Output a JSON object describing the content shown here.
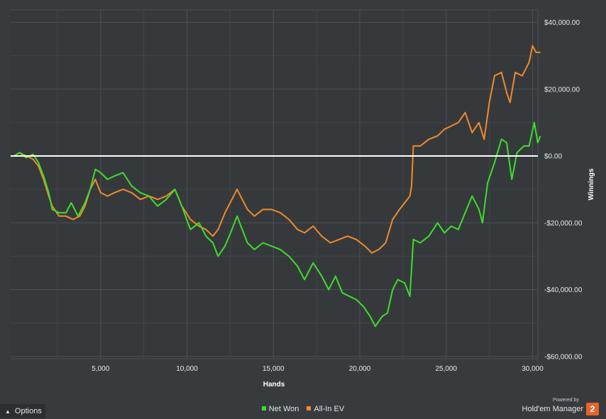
{
  "chart_data": {
    "type": "line",
    "xlabel": "Hands",
    "ylabel": "Winnings",
    "xlim": [
      0,
      30500
    ],
    "ylim": [
      -60000,
      40000
    ],
    "x_ticks": [
      5000,
      10000,
      15000,
      20000,
      25000,
      30000
    ],
    "x_tick_labels": [
      "5,000",
      "10,000",
      "15,000",
      "20,000",
      "25,000",
      "30,000"
    ],
    "y_ticks": [
      40000,
      20000,
      0,
      -20000,
      -40000,
      -60000
    ],
    "y_tick_labels": [
      "$40,000.00",
      "$20,000.00",
      "$0.00",
      "-$20,000.00",
      "-$40,000.00",
      "-$60,000.00"
    ],
    "grid": true,
    "legend_position": "bottom-center",
    "zero_line_color": "#ffffff",
    "series": [
      {
        "name": "Net Won",
        "color": "#3bde2a",
        "points": [
          [
            0,
            0
          ],
          [
            300,
            1000
          ],
          [
            700,
            -500
          ],
          [
            1100,
            500
          ],
          [
            1400,
            -2000
          ],
          [
            1700,
            -6000
          ],
          [
            2000,
            -11000
          ],
          [
            2200,
            -16000
          ],
          [
            2600,
            -17000
          ],
          [
            3000,
            -17000
          ],
          [
            3300,
            -14000
          ],
          [
            3700,
            -18000
          ],
          [
            4100,
            -14000
          ],
          [
            4400,
            -10000
          ],
          [
            4700,
            -4000
          ],
          [
            5000,
            -5000
          ],
          [
            5400,
            -7000
          ],
          [
            5800,
            -6000
          ],
          [
            6300,
            -5000
          ],
          [
            6800,
            -9000
          ],
          [
            7300,
            -11000
          ],
          [
            7800,
            -12000
          ],
          [
            8300,
            -15000
          ],
          [
            8800,
            -13000
          ],
          [
            9300,
            -10000
          ],
          [
            9700,
            -15000
          ],
          [
            10200,
            -22000
          ],
          [
            10700,
            -20000
          ],
          [
            11100,
            -24000
          ],
          [
            11500,
            -26000
          ],
          [
            11800,
            -30000
          ],
          [
            12200,
            -27000
          ],
          [
            12600,
            -22000
          ],
          [
            12900,
            -18000
          ],
          [
            13200,
            -22000
          ],
          [
            13500,
            -26000
          ],
          [
            13900,
            -28000
          ],
          [
            14400,
            -26000
          ],
          [
            14900,
            -27000
          ],
          [
            15400,
            -28000
          ],
          [
            15900,
            -30000
          ],
          [
            16400,
            -33000
          ],
          [
            16800,
            -37000
          ],
          [
            17300,
            -32000
          ],
          [
            17800,
            -36000
          ],
          [
            18200,
            -40000
          ],
          [
            18600,
            -36000
          ],
          [
            19000,
            -41000
          ],
          [
            19400,
            -42000
          ],
          [
            19800,
            -43000
          ],
          [
            20200,
            -45000
          ],
          [
            20600,
            -48000
          ],
          [
            20900,
            -51000
          ],
          [
            21300,
            -48000
          ],
          [
            21600,
            -47000
          ],
          [
            21900,
            -40000
          ],
          [
            22200,
            -37000
          ],
          [
            22600,
            -38000
          ],
          [
            22900,
            -42000
          ],
          [
            23100,
            -25000
          ],
          [
            23500,
            -26000
          ],
          [
            24000,
            -24000
          ],
          [
            24500,
            -20000
          ],
          [
            24900,
            -23000
          ],
          [
            25300,
            -21000
          ],
          [
            25700,
            -22000
          ],
          [
            26100,
            -17000
          ],
          [
            26500,
            -12000
          ],
          [
            26900,
            -16000
          ],
          [
            27100,
            -20000
          ],
          [
            27400,
            -8000
          ],
          [
            27800,
            -2000
          ],
          [
            28200,
            5000
          ],
          [
            28500,
            4000
          ],
          [
            28800,
            -7000
          ],
          [
            29100,
            1000
          ],
          [
            29500,
            3000
          ],
          [
            29800,
            3000
          ],
          [
            30100,
            10000
          ],
          [
            30300,
            4000
          ],
          [
            30450,
            6000
          ]
        ]
      },
      {
        "name": "All-In EV",
        "color": "#f08a2a",
        "points": [
          [
            0,
            0
          ],
          [
            300,
            1000
          ],
          [
            700,
            0
          ],
          [
            1100,
            -1000
          ],
          [
            1400,
            -3000
          ],
          [
            1700,
            -7000
          ],
          [
            2000,
            -12000
          ],
          [
            2200,
            -15000
          ],
          [
            2600,
            -18000
          ],
          [
            3000,
            -18000
          ],
          [
            3400,
            -19000
          ],
          [
            3800,
            -18000
          ],
          [
            4100,
            -15000
          ],
          [
            4400,
            -10000
          ],
          [
            4700,
            -7000
          ],
          [
            5000,
            -11000
          ],
          [
            5400,
            -12000
          ],
          [
            5800,
            -11000
          ],
          [
            6300,
            -10000
          ],
          [
            6800,
            -11000
          ],
          [
            7300,
            -13000
          ],
          [
            7800,
            -12000
          ],
          [
            8300,
            -13000
          ],
          [
            8800,
            -12000
          ],
          [
            9300,
            -10000
          ],
          [
            9700,
            -15000
          ],
          [
            10200,
            -19000
          ],
          [
            10700,
            -21000
          ],
          [
            11100,
            -22000
          ],
          [
            11500,
            -24000
          ],
          [
            11800,
            -22000
          ],
          [
            12200,
            -17000
          ],
          [
            12600,
            -13000
          ],
          [
            12900,
            -10000
          ],
          [
            13200,
            -13000
          ],
          [
            13500,
            -16000
          ],
          [
            13900,
            -18000
          ],
          [
            14400,
            -16000
          ],
          [
            14900,
            -16000
          ],
          [
            15400,
            -17000
          ],
          [
            15900,
            -19000
          ],
          [
            16400,
            -22000
          ],
          [
            16800,
            -23000
          ],
          [
            17300,
            -21000
          ],
          [
            17800,
            -24000
          ],
          [
            18300,
            -26000
          ],
          [
            18800,
            -25000
          ],
          [
            19300,
            -24000
          ],
          [
            19800,
            -25000
          ],
          [
            20300,
            -27000
          ],
          [
            20700,
            -29000
          ],
          [
            21100,
            -28000
          ],
          [
            21500,
            -26000
          ],
          [
            21900,
            -19000
          ],
          [
            22300,
            -16000
          ],
          [
            22600,
            -14000
          ],
          [
            22900,
            -12000
          ],
          [
            23000,
            -9000
          ],
          [
            23100,
            3000
          ],
          [
            23500,
            3000
          ],
          [
            24000,
            5000
          ],
          [
            24500,
            6000
          ],
          [
            24900,
            8000
          ],
          [
            25300,
            9000
          ],
          [
            25700,
            10000
          ],
          [
            26100,
            13000
          ],
          [
            26500,
            7000
          ],
          [
            26900,
            10000
          ],
          [
            27200,
            5000
          ],
          [
            27500,
            16000
          ],
          [
            27800,
            24000
          ],
          [
            28200,
            25000
          ],
          [
            28500,
            19000
          ],
          [
            28700,
            16000
          ],
          [
            29000,
            25000
          ],
          [
            29400,
            24000
          ],
          [
            29800,
            28000
          ],
          [
            30000,
            33000
          ],
          [
            30200,
            31000
          ],
          [
            30450,
            31000
          ]
        ]
      }
    ]
  },
  "options_label": "Options",
  "branding": {
    "powered_by": "Powered by",
    "product": "Hold'em Manager",
    "badge": "2"
  }
}
